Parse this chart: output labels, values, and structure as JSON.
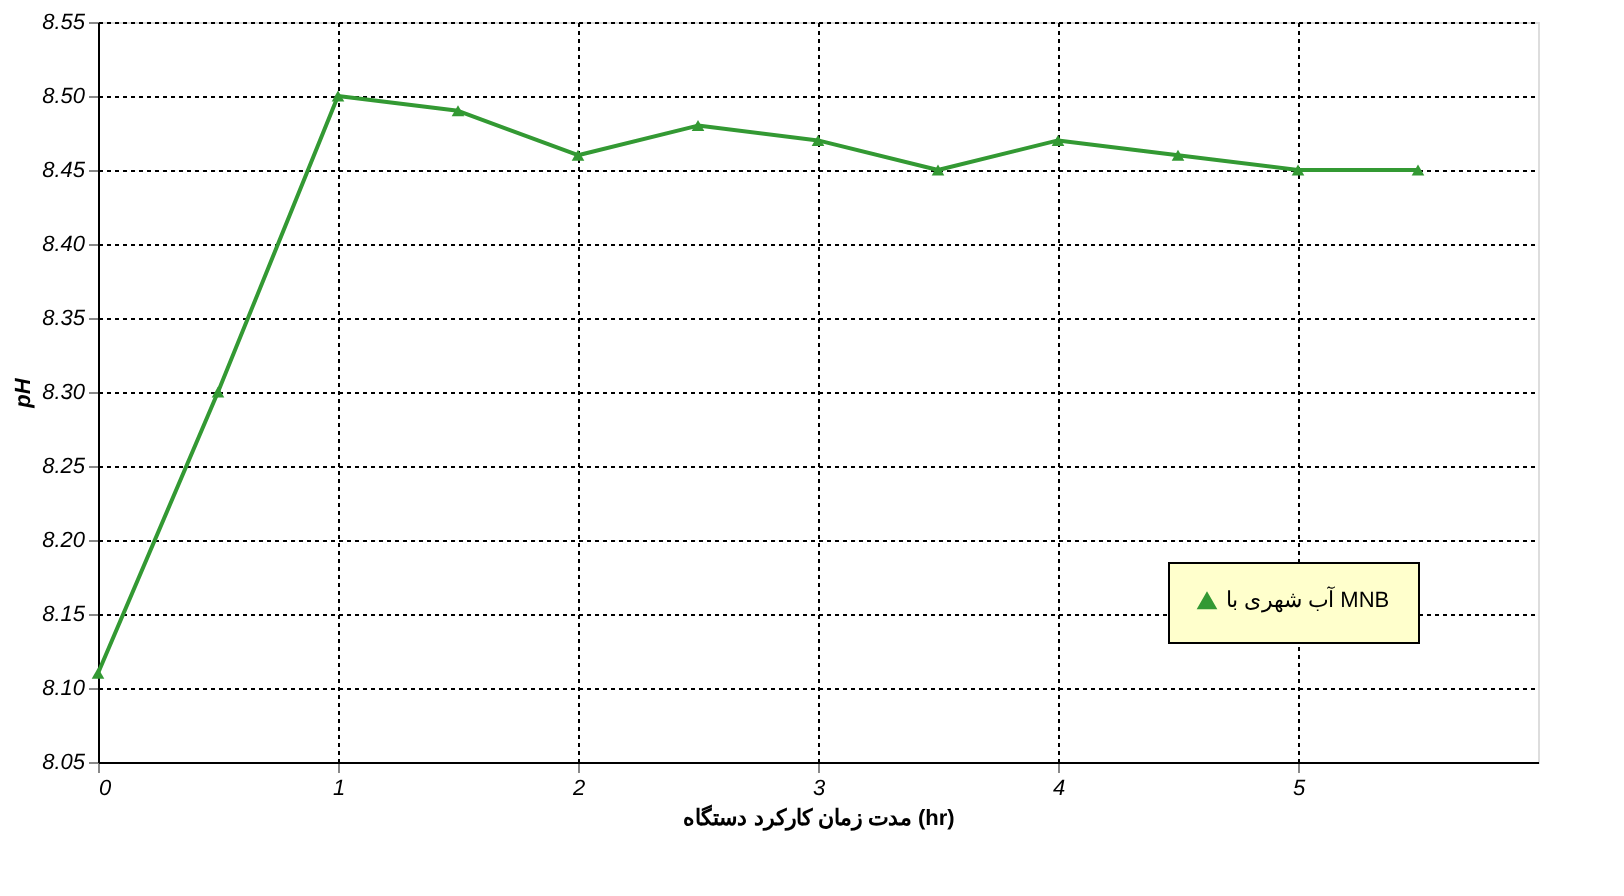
{
  "chart_data": {
    "type": "line",
    "xlabel": "مدت زمان کارکرد دستگاه (hr)",
    "ylabel": "pH",
    "x": [
      0,
      0.5,
      1,
      1.5,
      2,
      2.5,
      3,
      3.5,
      4,
      4.5,
      5,
      5.5
    ],
    "series": [
      {
        "name": "آب شهری با MNB",
        "color": "#339933",
        "values": [
          8.11,
          8.3,
          8.5,
          8.49,
          8.46,
          8.48,
          8.47,
          8.45,
          8.47,
          8.46,
          8.45,
          8.45
        ]
      }
    ],
    "xlim": [
      0,
      6
    ],
    "xticks": [
      0,
      1,
      2,
      3,
      4,
      5
    ],
    "ylim": [
      8.05,
      8.55
    ],
    "yticks": [
      8.05,
      {
        "value": 8.1,
        "label": "8.10"
      },
      8.15,
      {
        "value": 8.2,
        "label": "8.20"
      },
      8.25,
      {
        "value": 8.3,
        "label": "8.30"
      },
      8.35,
      {
        "value": 8.4,
        "label": "8.40"
      },
      8.45,
      {
        "value": 8.5,
        "label": "8.50"
      },
      8.55
    ],
    "grid": true,
    "legend": "bottom right",
    "marker": "triangle",
    "line_style": "solid"
  }
}
